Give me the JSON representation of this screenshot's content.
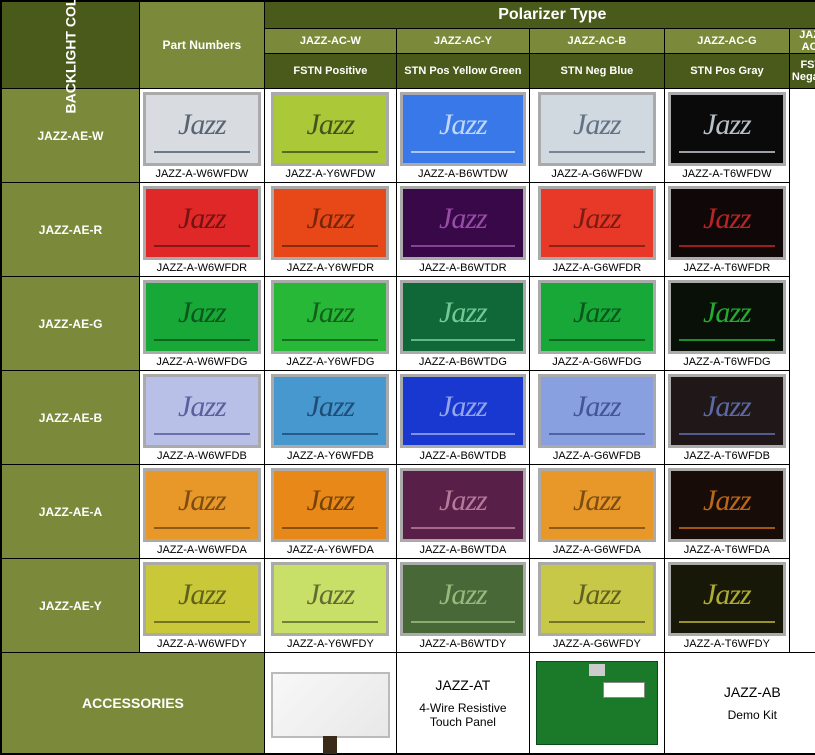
{
  "headers": {
    "main": "Polarizer Type",
    "partNumbers": "Part Numbers",
    "backlightColor": "BACKLIGHT COLOR",
    "accessories": "ACCESSORIES"
  },
  "columns": [
    {
      "code": "JAZZ-AC-W",
      "type": "FSTN Positive"
    },
    {
      "code": "JAZZ-AC-Y",
      "type": "STN Pos Yellow Green"
    },
    {
      "code": "JAZZ-AC-B",
      "type": "STN Neg Blue"
    },
    {
      "code": "JAZZ-AC-G",
      "type": "STN Pos Gray"
    },
    {
      "code": "JAZZ-AC-T",
      "type": "FSTN Negative"
    }
  ],
  "rows": [
    {
      "label": "JAZZ-AE-W",
      "cells": [
        {
          "bg": "#d8dce0",
          "fg": "#405060",
          "code": "JAZZ-A-W6WFDW"
        },
        {
          "bg": "#aac838",
          "fg": "#304018",
          "code": "JAZZ-A-Y6WFDW"
        },
        {
          "bg": "#3878e8",
          "fg": "#d8e8ff",
          "code": "JAZZ-A-B6WTDW"
        },
        {
          "bg": "#d0d8e0",
          "fg": "#506078",
          "code": "JAZZ-A-G6WFDW"
        },
        {
          "bg": "#0a0a0a",
          "fg": "#d8e0e8",
          "code": "JAZZ-A-T6WFDW"
        }
      ]
    },
    {
      "label": "JAZZ-AE-R",
      "cells": [
        {
          "bg": "#e02828",
          "fg": "#601010",
          "code": "JAZZ-A-W6WFDR"
        },
        {
          "bg": "#e84818",
          "fg": "#602008",
          "code": "JAZZ-A-Y6WFDR"
        },
        {
          "bg": "#380848",
          "fg": "#a858b8",
          "code": "JAZZ-A-B6WTDR"
        },
        {
          "bg": "#e83828",
          "fg": "#681810",
          "code": "JAZZ-A-G6WFDR"
        },
        {
          "bg": "#100808",
          "fg": "#d82828",
          "code": "JAZZ-A-T6WFDR"
        }
      ]
    },
    {
      "label": "JAZZ-AE-G",
      "cells": [
        {
          "bg": "#18a838",
          "fg": "#084818",
          "code": "JAZZ-A-W6WFDG"
        },
        {
          "bg": "#28b838",
          "fg": "#105018",
          "code": "JAZZ-A-Y6WFDG"
        },
        {
          "bg": "#106838",
          "fg": "#88d8a8",
          "code": "JAZZ-A-B6WTDG"
        },
        {
          "bg": "#18a838",
          "fg": "#084818",
          "code": "JAZZ-A-G6WFDG"
        },
        {
          "bg": "#081008",
          "fg": "#28c838",
          "code": "JAZZ-A-T6WFDG"
        }
      ]
    },
    {
      "label": "JAZZ-AE-B",
      "cells": [
        {
          "bg": "#b8c0e8",
          "fg": "#485090",
          "code": "JAZZ-A-W6WFDB"
        },
        {
          "bg": "#4898d0",
          "fg": "#184068",
          "code": "JAZZ-A-Y6WFDB"
        },
        {
          "bg": "#1838d0",
          "fg": "#a8b8f0",
          "code": "JAZZ-A-B6WTDB"
        },
        {
          "bg": "#88a0e0",
          "fg": "#384888",
          "code": "JAZZ-A-G6WFDB"
        },
        {
          "bg": "#201818",
          "fg": "#6878c0",
          "code": "JAZZ-A-T6WFDB"
        }
      ]
    },
    {
      "label": "JAZZ-AE-A",
      "cells": [
        {
          "bg": "#e89828",
          "fg": "#684010",
          "code": "JAZZ-A-W6WFDA"
        },
        {
          "bg": "#e88818",
          "fg": "#603808",
          "code": "JAZZ-A-Y6WFDA"
        },
        {
          "bg": "#582048",
          "fg": "#c888a8",
          "code": "JAZZ-A-B6WTDA"
        },
        {
          "bg": "#e89828",
          "fg": "#684010",
          "code": "JAZZ-A-G6WFDA"
        },
        {
          "bg": "#180c08",
          "fg": "#d87818",
          "code": "JAZZ-A-T6WFDA"
        }
      ]
    },
    {
      "label": "JAZZ-AE-Y",
      "cells": [
        {
          "bg": "#c8c838",
          "fg": "#505018",
          "code": "JAZZ-A-W6WFDY"
        },
        {
          "bg": "#c8e068",
          "fg": "#505828",
          "code": "JAZZ-A-Y6WFDY"
        },
        {
          "bg": "#486838",
          "fg": "#a8c888",
          "code": "JAZZ-A-B6WTDY"
        },
        {
          "bg": "#c8c848",
          "fg": "#505018",
          "code": "JAZZ-A-G6WFDY"
        },
        {
          "bg": "#181808",
          "fg": "#c8c838",
          "code": "JAZZ-A-T6WFDY"
        }
      ]
    }
  ],
  "accessories": [
    {
      "title": "JAZZ-AT",
      "sub": "4-Wire Resistive Touch Panel"
    },
    {
      "title": "JAZZ-AB",
      "sub": "Demo Kit"
    }
  ],
  "jazzWord": "Jazz"
}
